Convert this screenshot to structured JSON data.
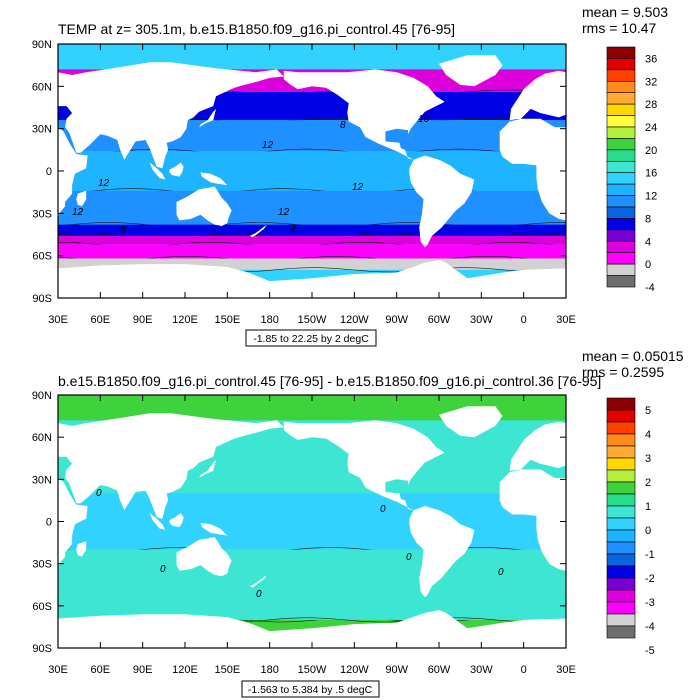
{
  "colors": {
    "land": "#ffffff",
    "frame": "#000000",
    "contour": "#1a1a1a"
  },
  "chart_data": [
    {
      "type": "heatmap",
      "title": "TEMP at z= 305.1m, b.e15.B1850.f09_g16.pi_control.45 [76-95]",
      "stats": {
        "mean": "mean = 9.503",
        "rms": "rms = 10.47"
      },
      "range_label": "-1.85 to 22.25 by 2 degC",
      "x_ticks": [
        "30E",
        "60E",
        "90E",
        "120E",
        "150E",
        "180",
        "150W",
        "120W",
        "90W",
        "60W",
        "30W",
        "0",
        "30E"
      ],
      "y_ticks": [
        "90N",
        "60N",
        "30N",
        "0",
        "30S",
        "60S",
        "90S"
      ],
      "xlim": [
        30,
        390
      ],
      "ylim": [
        -90,
        90
      ],
      "colorbar": {
        "labels": [
          "36",
          "32",
          "28",
          "24",
          "20",
          "16",
          "12",
          "8",
          "4",
          "0",
          "-4"
        ],
        "colors": [
          "#8b0000",
          "#e00000",
          "#ff4000",
          "#ff8c1a",
          "#ffaa33",
          "#ffd700",
          "#ffff40",
          "#b4f03c",
          "#3ed23c",
          "#28dc8c",
          "#3ce6d2",
          "#32d2ff",
          "#1eb4ff",
          "#1e90ff",
          "#0a64dc",
          "#0000e6",
          "#7800d2",
          "#dc00dc",
          "#ff00ff",
          "#d2d2d2",
          "#6e6e6e"
        ]
      },
      "contour_labels": [
        "16",
        "8",
        "12",
        "12",
        "12",
        "12",
        "12",
        "8",
        "4"
      ],
      "zones": [
        {
          "lat": [
            56,
            72
          ],
          "value": 2
        },
        {
          "lat": [
            36,
            56
          ],
          "value": 6
        },
        {
          "lat": [
            14,
            36
          ],
          "value": 11
        },
        {
          "lat": [
            -14,
            14
          ],
          "value": 13
        },
        {
          "lat": [
            -38,
            -14
          ],
          "value": 11
        },
        {
          "lat": [
            -46,
            -38
          ],
          "value": 7
        },
        {
          "lat": [
            -52,
            -46
          ],
          "value": 3
        },
        {
          "lat": [
            -62,
            -52
          ],
          "value": 1
        },
        {
          "lat": [
            -70,
            -62
          ],
          "value": -1
        }
      ]
    },
    {
      "type": "heatmap",
      "title": "b.e15.B1850.f09_g16.pi_control.45 [76-95] - b.e15.B1850.f09_g16.pi_control.36 [76-95]",
      "stats": {
        "mean": "mean = 0.05015",
        "rms": "rms = 0.2595"
      },
      "range_label": "-1.563 to 5.384 by .5 degC",
      "x_ticks": [
        "30E",
        "60E",
        "90E",
        "120E",
        "150E",
        "180",
        "150W",
        "120W",
        "90W",
        "60W",
        "30W",
        "0",
        "30E"
      ],
      "y_ticks": [
        "90N",
        "60N",
        "30N",
        "0",
        "30S",
        "60S",
        "90S"
      ],
      "xlim": [
        30,
        390
      ],
      "ylim": [
        -90,
        90
      ],
      "colorbar": {
        "labels": [
          "5",
          "4",
          "3",
          "2",
          "1",
          "0",
          "-1",
          "-2",
          "-3",
          "-4",
          "-5"
        ],
        "colors": [
          "#8b0000",
          "#e00000",
          "#ff4000",
          "#ff8c1a",
          "#ffaa33",
          "#ffd700",
          "#b4f03c",
          "#3ed23c",
          "#28dc8c",
          "#3ce6d2",
          "#32d2ff",
          "#1eb4ff",
          "#1e90ff",
          "#0a64dc",
          "#0000e6",
          "#7800d2",
          "#dc00dc",
          "#ff00ff",
          "#d2d2d2",
          "#6e6e6e"
        ]
      },
      "contour_labels": [
        "0",
        "0",
        "0",
        "0",
        "0",
        "0"
      ],
      "zones": [
        {
          "lat": [
            -70,
            72
          ],
          "value": 0.25
        },
        {
          "lat": [
            -20,
            20
          ],
          "value": -0.25
        },
        {
          "lat": [
            -70,
            -20
          ],
          "value": 0.25
        }
      ]
    }
  ]
}
